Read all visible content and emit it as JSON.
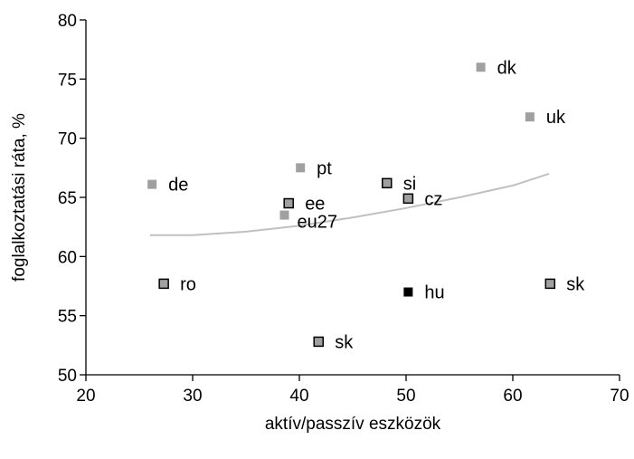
{
  "chart_data": {
    "type": "scatter",
    "title": "",
    "xlabel": "aktív/passzív eszközök",
    "ylabel": "foglalkoztatási ráta, %",
    "xlim": [
      20,
      70
    ],
    "ylim": [
      50,
      80
    ],
    "xticks": [
      20,
      30,
      40,
      50,
      60,
      70
    ],
    "yticks": [
      50,
      55,
      60,
      65,
      70,
      75,
      80
    ],
    "grid": false,
    "legend": "none",
    "points": [
      {
        "label": "dk",
        "x": 57.0,
        "y": 76.0,
        "style": "plain"
      },
      {
        "label": "uk",
        "x": 61.6,
        "y": 71.8,
        "style": "plain"
      },
      {
        "label": "pt",
        "x": 40.1,
        "y": 67.5,
        "style": "plain"
      },
      {
        "label": "de",
        "x": 26.2,
        "y": 66.1,
        "style": "plain"
      },
      {
        "label": "si",
        "x": 48.2,
        "y": 66.2,
        "style": "bordered"
      },
      {
        "label": "cz",
        "x": 50.2,
        "y": 64.9,
        "style": "bordered"
      },
      {
        "label": "ee",
        "x": 39.0,
        "y": 64.5,
        "style": "bordered"
      },
      {
        "label": "eu27",
        "x": 38.6,
        "y": 63.5,
        "style": "plain"
      },
      {
        "label": "ro",
        "x": 27.3,
        "y": 57.7,
        "style": "bordered"
      },
      {
        "label": "sk",
        "x": 63.5,
        "y": 57.7,
        "style": "bordered"
      },
      {
        "label": "hu",
        "x": 50.2,
        "y": 57.0,
        "style": "highlight"
      },
      {
        "label": "sk",
        "x": 41.8,
        "y": 52.8,
        "style": "bordered"
      }
    ],
    "trendline": {
      "x": [
        26,
        30,
        35,
        40,
        45,
        50,
        55,
        60,
        63.4
      ],
      "y": [
        61.8,
        61.8,
        62.1,
        62.6,
        63.3,
        64.1,
        65.0,
        66.0,
        67.0
      ]
    },
    "colors": {
      "plain": "#a0a0a0",
      "bordered_fill": "#a0a0a0",
      "bordered_stroke": "#000000",
      "highlight": "#000000",
      "trendline": "#c0c0c0",
      "axis": "#000000"
    }
  }
}
